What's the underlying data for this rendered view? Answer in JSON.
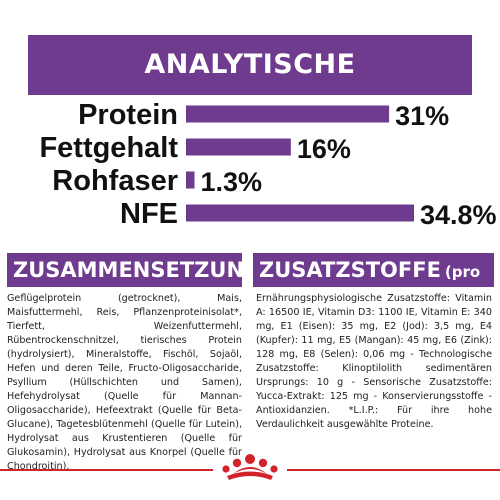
{
  "title": "ANALYTISCHE BESTANDTEILE",
  "chart_data": {
    "type": "bar",
    "orientation": "horizontal",
    "categories": [
      "Protein",
      "Fettgehalt",
      "Rohfaser",
      "NFE"
    ],
    "values": [
      31,
      16,
      1.3,
      34.8
    ],
    "value_labels": [
      "31%",
      "16%",
      "1.3%",
      "34.8%"
    ],
    "unit": "%",
    "bar_color": "#6f3b8e"
  },
  "composition": {
    "heading": "ZUSAMMENSETZUNG",
    "text": "Geflügelprotein (getrocknet), Mais, Maisfuttermehl, Reis, Pflanzenproteinisolat*, Tierfett, Weizenfuttermehl, Rübentrockenschnitzel, tierisches Protein (hydrolysiert), Mineralstoffe, Fischöl, Sojaöl, Hefen und deren Teile, Fructo-Oligosaccharide, Psyllium (Hüllschichten und Samen), Hefehydrolysat (Quelle für Mannan-Oligosaccharide), Hefeextrakt (Quelle für Beta-Glucane), Tagetesblütenmehl (Quelle für Lutein), Hydrolysat aus Krustentieren (Quelle für Glukosamin), Hydrolysat aus Knorpel (Quelle für Chondroitin)."
  },
  "additives": {
    "heading": "ZUSATZSTOFFE",
    "unit": "(pro kg)",
    "text": "Ernährungsphysiologische Zusatzstoffe: Vitamin A: 16500 IE, Vitamin D3: 1100 IE, Vitamin E: 340 mg, E1 (Eisen): 35 mg, E2 (Jod): 3,5 mg, E4 (Kupfer): 11 mg, E5 (Mangan): 45 mg, E6 (Zink): 128 mg, E8 (Selen): 0,06 mg - Technologische Zusatzstoffe: Klinoptilolith sedimentären Ursprungs: 10 g - Sensorische Zusatzstoffe: Yucca-Extrakt: 125 mg - Konservierungsstoffe - Antioxidanzien. *L.I.P.: Für ihre hohe Verdaulichkeit ausgewählte Proteine."
  },
  "brand": {
    "logo": "royal-canin-crown-icon",
    "accent_color": "#d3232a"
  }
}
